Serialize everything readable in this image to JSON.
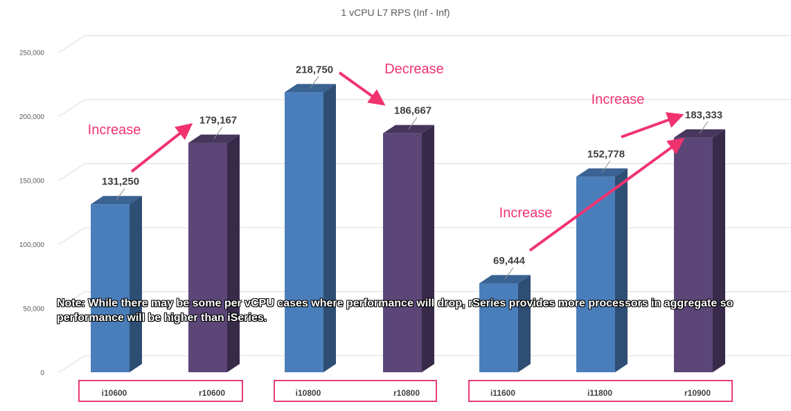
{
  "chart_data": {
    "type": "bar",
    "title": "1 vCPU L7 RPS (Inf - Inf)",
    "xlabel": "",
    "ylabel": "",
    "ylim": [
      0,
      250000
    ],
    "yticks": [
      "0",
      "50,000",
      "100,000",
      "150,000",
      "200,000",
      "250,000"
    ],
    "categories": [
      "i10600",
      "r10600",
      "i10800",
      "r10800",
      "i11600",
      "i11800",
      "r10900"
    ],
    "values": [
      131250,
      179167,
      218750,
      186667,
      69444,
      152778,
      183333
    ],
    "value_labels": [
      "131,250",
      "179,167",
      "218,750",
      "186,667",
      "69,444",
      "152,778",
      "183,333"
    ],
    "series_type": [
      "iSeries",
      "rSeries",
      "iSeries",
      "rSeries",
      "iSeries",
      "iSeries",
      "rSeries"
    ],
    "groups": [
      [
        "i10600",
        "r10600"
      ],
      [
        "i10800",
        "r10800"
      ],
      [
        "i11600",
        "i11800",
        "r10900"
      ]
    ],
    "annotations": [
      {
        "text": "Increase",
        "from": "i10600",
        "to": "r10600"
      },
      {
        "text": "Decrease",
        "from": "i10800",
        "to": "r10800"
      },
      {
        "text": "Increase",
        "from": "i11800",
        "to": "r10900"
      },
      {
        "text": "Increase",
        "from": "i11600",
        "to": "r10900"
      }
    ],
    "grid": true
  },
  "note": "Note: While there may be some per vCPU cases where performance will drop, rSeries provides more processors in aggregate so performance will be higher than iSeries.",
  "colors": {
    "iSeries": "#4a7ebb",
    "rSeries": "#5b4677",
    "annotation": "#f0336f",
    "group_box": "#e83b77",
    "grid": "#d9d9d9"
  }
}
